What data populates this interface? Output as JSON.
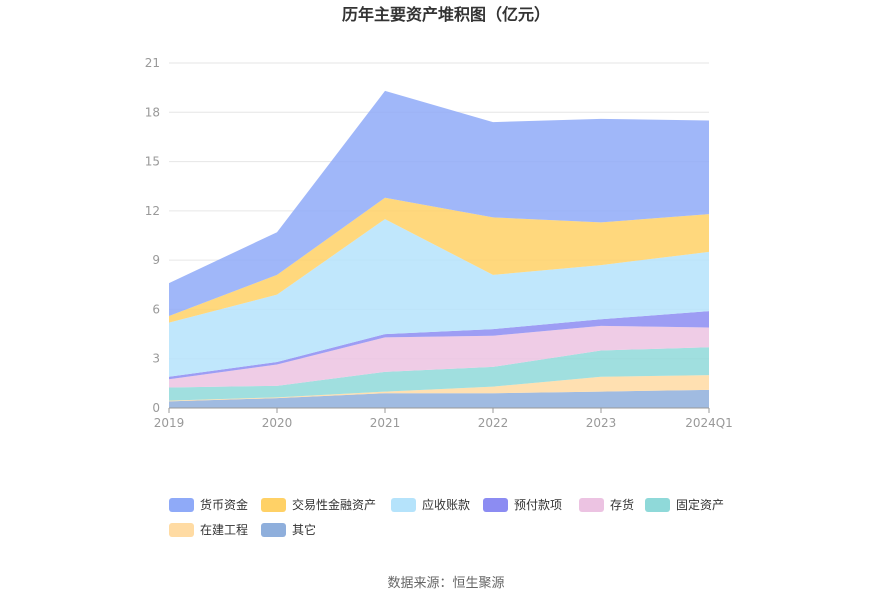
{
  "chart_data": {
    "type": "area",
    "stacked": true,
    "title": "历年主要资产堆积图（亿元）",
    "categories": [
      "2019",
      "2020",
      "2021",
      "2022",
      "2023",
      "2024Q1"
    ],
    "ylim": [
      0,
      21
    ],
    "yticks": [
      0,
      3,
      6,
      9,
      12,
      15,
      18,
      21
    ],
    "grid": true,
    "legend_position": "bottom",
    "series": [
      {
        "name": "其它",
        "color": "#8fafdc",
        "values": [
          0.4,
          0.6,
          0.9,
          0.9,
          1.0,
          1.1
        ]
      },
      {
        "name": "在建工程",
        "color": "#ffdba3",
        "values": [
          0.05,
          0.05,
          0.1,
          0.4,
          0.9,
          0.9
        ]
      },
      {
        "name": "固定资产",
        "color": "#8fd9d9",
        "values": [
          0.8,
          0.7,
          1.2,
          1.2,
          1.6,
          1.7
        ]
      },
      {
        "name": "存货",
        "color": "#ecc3e2",
        "values": [
          0.5,
          1.3,
          2.1,
          1.9,
          1.5,
          1.2
        ]
      },
      {
        "name": "预付款项",
        "color": "#8c8cf2",
        "values": [
          0.15,
          0.15,
          0.2,
          0.4,
          0.4,
          1.0
        ]
      },
      {
        "name": "应收账款",
        "color": "#b5e3fb",
        "values": [
          3.3,
          4.1,
          7.0,
          3.3,
          3.3,
          3.6
        ]
      },
      {
        "name": "交易性金融资产",
        "color": "#ffd166",
        "values": [
          0.4,
          1.2,
          1.3,
          3.5,
          2.6,
          2.3
        ]
      },
      {
        "name": "货币资金",
        "color": "#8faaf8",
        "values": [
          2.0,
          2.6,
          6.5,
          5.8,
          6.3,
          5.7
        ]
      }
    ],
    "legend_order": [
      "货币资金",
      "交易性金融资产",
      "应收账款",
      "预付款项",
      "存货",
      "固定资产",
      "在建工程",
      "其它"
    ]
  },
  "source": "数据来源：恒生聚源"
}
